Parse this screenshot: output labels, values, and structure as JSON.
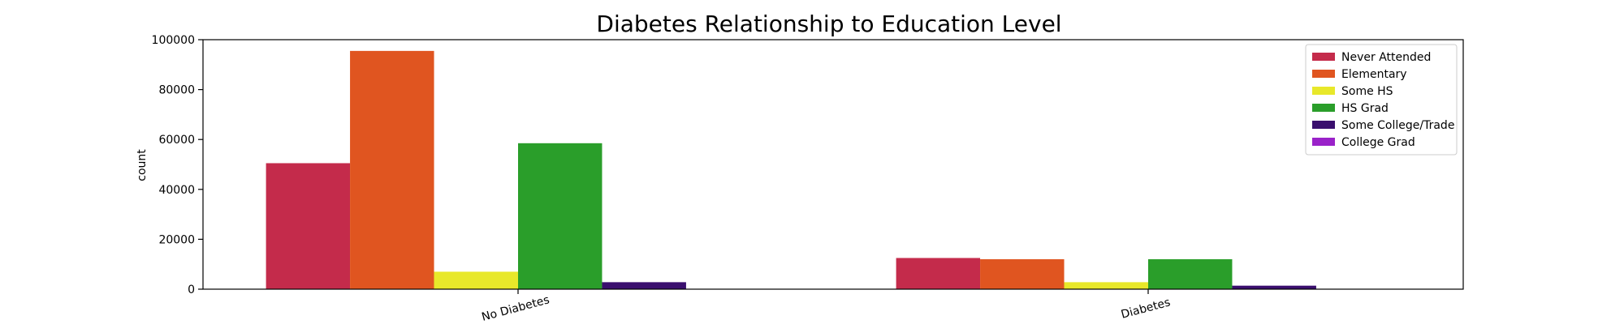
{
  "chart_data": {
    "type": "bar",
    "title": "Diabetes Relationship to Education Level",
    "xlabel": "",
    "ylabel": "count",
    "ylim": [
      0,
      100000
    ],
    "yticks": [
      0,
      20000,
      40000,
      60000,
      80000,
      100000
    ],
    "categories": [
      "No Diabetes",
      "Diabetes"
    ],
    "series": [
      {
        "name": "Never Attended",
        "color": "#c42b4b",
        "values": [
          50500,
          12500
        ]
      },
      {
        "name": "Elementary",
        "color": "#e05520",
        "values": [
          95500,
          12000
        ]
      },
      {
        "name": "Some HS",
        "color": "#e8e82a",
        "values": [
          7000,
          2800
        ]
      },
      {
        "name": "HS Grad",
        "color": "#2a9e2a",
        "values": [
          58500,
          12000
        ]
      },
      {
        "name": "Some College/Trade",
        "color": "#3a0f6e",
        "values": [
          2800,
          1400
        ]
      },
      {
        "name": "College Grad",
        "color": "#9a22c9",
        "values": [
          0,
          0
        ]
      }
    ],
    "legend": "top-right",
    "grid": false
  }
}
